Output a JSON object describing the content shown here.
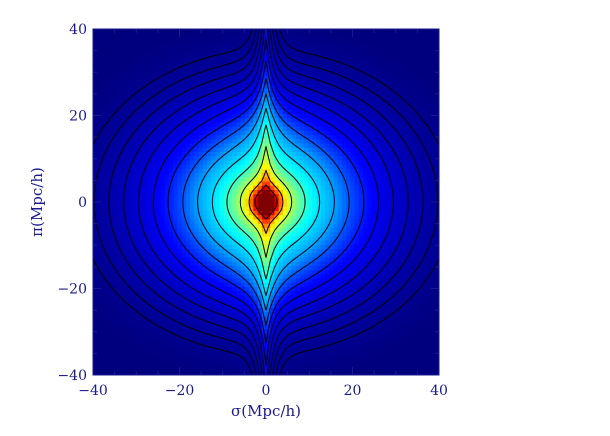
{
  "chart_data": {
    "type": "heatmap",
    "title": "",
    "xlabel": "σ(Mpc/h)",
    "ylabel": "π(Mpc/h)",
    "xlim": [
      -40,
      40
    ],
    "ylim": [
      -40,
      40
    ],
    "x_ticks": [
      -40,
      -20,
      0,
      20,
      40
    ],
    "y_ticks": [
      -40,
      -20,
      0,
      20,
      40
    ],
    "x_tick_labels": [
      "−40",
      "−20",
      "0",
      "20",
      "40"
    ],
    "y_tick_labels": [
      "−40",
      "−20",
      "0",
      "20",
      "40"
    ],
    "grid": false,
    "legend": "none",
    "description_of_field": "2D correlation function ξ(σ,π) shown as filled color map with black contour lines; peak at origin, contours stretched along π near σ=0 and flattened beyond |π|≈25",
    "colormap": [
      "#00007f",
      "#0000ff",
      "#00a0ff",
      "#00ffff",
      "#80ff80",
      "#ffff00",
      "#ff8000",
      "#ff0000",
      "#7f0000"
    ],
    "contour_levels": 14,
    "axis_color": "#1a1a8c"
  }
}
